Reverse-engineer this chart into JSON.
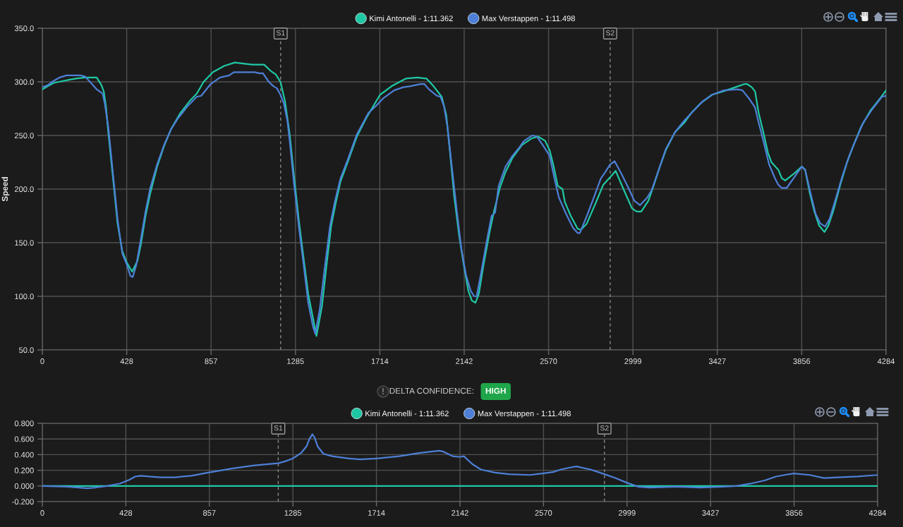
{
  "chart_data": [
    {
      "type": "line",
      "ylabel": "Speed",
      "legend": "top",
      "grid": true,
      "xlim": [
        0,
        4284
      ],
      "xticks": [
        0,
        {
          "value": 428.4,
          "label": "428"
        },
        {
          "value": 856.8,
          "label": "857"
        },
        {
          "value": 1285.2,
          "label": "1285"
        },
        {
          "value": 1713.6,
          "label": "1714"
        },
        2142,
        {
          "value": 2570.4,
          "label": "2570"
        },
        {
          "value": 2998.8,
          "label": "2999"
        },
        {
          "value": 3427.2,
          "label": "3427"
        },
        {
          "value": 3855.6,
          "label": "3856"
        },
        4284
      ],
      "ylim": [
        50,
        350
      ],
      "yticks": [
        {
          "value": 50,
          "label": "50.0"
        },
        {
          "value": 100,
          "label": "100.0"
        },
        {
          "value": 150,
          "label": "150.0"
        },
        {
          "value": 200,
          "label": "200.0"
        },
        {
          "value": 250,
          "label": "250.0"
        },
        {
          "value": 300,
          "label": "300.0"
        },
        {
          "value": 350,
          "label": "350.0"
        }
      ],
      "ref_lines": [
        {
          "axis": "x",
          "value": 1210,
          "label": "S1",
          "color": "#8a8a8a",
          "line_style": "dashed"
        },
        {
          "axis": "x",
          "value": 2883,
          "label": "S2",
          "color": "#8a8a8a",
          "line_style": "dashed"
        }
      ],
      "series": [
        {
          "name": "Kimi Antonelli - 1:11.362",
          "color": "#1fc8a4",
          "x": [
            0,
            28,
            58,
            111,
            140,
            170,
            217,
            276,
            300,
            312,
            323,
            335,
            359,
            382,
            406,
            430,
            456,
            483,
            500,
            524,
            548,
            583,
            618,
            654,
            701,
            748,
            784,
            819,
            866,
            925,
            978,
            1020,
            1067,
            1126,
            1161,
            1185,
            1209,
            1232,
            1256,
            1279,
            1303,
            1327,
            1350,
            1374,
            1392,
            1420,
            1443,
            1467,
            1491,
            1514,
            1550,
            1597,
            1644,
            1715,
            1774,
            1845,
            1904,
            1951,
            1986,
            2028,
            2051,
            2069,
            2092,
            2116,
            2140,
            2163,
            2181,
            2199,
            2216,
            2240,
            2270,
            2293,
            2323,
            2352,
            2387,
            2435,
            2482,
            2517,
            2553,
            2576,
            2594,
            2617,
            2641,
            2653,
            2683,
            2718,
            2735,
            2765,
            2800,
            2812,
            2848,
            2883,
            2911,
            2953,
            2994,
            3018,
            3041,
            3077,
            3100,
            3130,
            3165,
            3212,
            3260,
            3295,
            3342,
            3401,
            3472,
            3519,
            3566,
            3578,
            3602,
            3619,
            3637,
            3661,
            3684,
            3702,
            3737,
            3755,
            3772,
            3814,
            3856,
            3873,
            3897,
            3920,
            3944,
            3971,
            3991,
            4015,
            4050,
            4086,
            4121,
            4157,
            4204,
            4251,
            4284
          ],
          "values": [
            293,
            296,
            299,
            301,
            302,
            303,
            304,
            304,
            297,
            291,
            277,
            253,
            210,
            168,
            142,
            131,
            123,
            133,
            148,
            175,
            196,
            221,
            240,
            256,
            271,
            282,
            289,
            300,
            309,
            315,
            318,
            317,
            316,
            316,
            310,
            307,
            300,
            282,
            251,
            210,
            170,
            135,
            102,
            80,
            63,
            91,
            129,
            166,
            188,
            207,
            225,
            249,
            266,
            288,
            296,
            303,
            304,
            303,
            296,
            286,
            269,
            236,
            192,
            157,
            129,
            105,
            96,
            94,
            102,
            129,
            159,
            179,
            201,
            216,
            229,
            241,
            247,
            249,
            245,
            236,
            223,
            203,
            200,
            188,
            175,
            163,
            162,
            168,
            183,
            188,
            204,
            211,
            217,
            199,
            182,
            179,
            179,
            189,
            201,
            218,
            236,
            253,
            262,
            271,
            280,
            288,
            292,
            295,
            298,
            298,
            295,
            291,
            271,
            253,
            234,
            225,
            218,
            210,
            208,
            214,
            221,
            218,
            196,
            179,
            166,
            160,
            166,
            179,
            203,
            225,
            242,
            258,
            273,
            284,
            292
          ]
        },
        {
          "name": "Max Verstappen - 1:11.498",
          "color": "#4d7fd6",
          "x": [
            0,
            28,
            58,
            87,
            123,
            194,
            217,
            247,
            276,
            306,
            317,
            335,
            359,
            382,
            406,
            430,
            447,
            459,
            477,
            500,
            524,
            548,
            583,
            618,
            654,
            689,
            736,
            784,
            807,
            855,
            902,
            949,
            972,
            1079,
            1102,
            1120,
            1150,
            1173,
            1191,
            1209,
            1226,
            1244,
            1256,
            1279,
            1303,
            1327,
            1350,
            1374,
            1386,
            1408,
            1432,
            1461,
            1485,
            1514,
            1550,
            1597,
            1656,
            1691,
            1733,
            1786,
            1833,
            1869,
            1921,
            1939,
            1963,
            2004,
            2022,
            2040,
            2057,
            2081,
            2105,
            2128,
            2151,
            2175,
            2193,
            2205,
            2228,
            2258,
            2281,
            2299,
            2317,
            2352,
            2387,
            2423,
            2446,
            2488,
            2511,
            2541,
            2576,
            2600,
            2623,
            2659,
            2694,
            2718,
            2729,
            2765,
            2800,
            2836,
            2859,
            2883,
            2906,
            2941,
            2976,
            3006,
            3035,
            3071,
            3094,
            3130,
            3165,
            3212,
            3260,
            3307,
            3354,
            3401,
            3460,
            3531,
            3555,
            3590,
            3619,
            3637,
            3661,
            3690,
            3720,
            3737,
            3755,
            3779,
            3814,
            3856,
            3873,
            3897,
            3926,
            3950,
            3974,
            3997,
            4027,
            4062,
            4097,
            4133,
            4168,
            4216,
            4263,
            4284
          ],
          "values": [
            295,
            297,
            301,
            304,
            306,
            306,
            305,
            299,
            293,
            289,
            280,
            258,
            214,
            172,
            140,
            129,
            119,
            118,
            129,
            153,
            179,
            201,
            223,
            241,
            256,
            266,
            277,
            286,
            287,
            298,
            304,
            306,
            309,
            309,
            308,
            308,
            300,
            296,
            294,
            288,
            280,
            264,
            245,
            203,
            164,
            129,
            94,
            72,
            65,
            87,
            124,
            166,
            188,
            210,
            227,
            251,
            271,
            277,
            285,
            292,
            295,
            296,
            298,
            298,
            293,
            287,
            286,
            277,
            258,
            218,
            179,
            144,
            120,
            105,
            100,
            100,
            122,
            153,
            175,
            178,
            203,
            221,
            231,
            239,
            245,
            250,
            249,
            241,
            231,
            210,
            192,
            177,
            164,
            159,
            159,
            175,
            192,
            210,
            216,
            223,
            226,
            214,
            201,
            189,
            185,
            192,
            199,
            218,
            237,
            253,
            264,
            273,
            282,
            288,
            292,
            293,
            292,
            284,
            276,
            262,
            245,
            223,
            210,
            204,
            201,
            201,
            210,
            221,
            218,
            199,
            177,
            168,
            165,
            172,
            190,
            212,
            231,
            247,
            262,
            275,
            286,
            287
          ]
        }
      ]
    },
    {
      "type": "line",
      "legend": "top",
      "grid": true,
      "annotations": [
        "DELTA CONFIDENCE:",
        "HIGH"
      ],
      "xlim": [
        0,
        4284
      ],
      "xticks": [
        0,
        {
          "value": 428.4,
          "label": "428"
        },
        {
          "value": 856.8,
          "label": "857"
        },
        {
          "value": 1285.2,
          "label": "1285"
        },
        {
          "value": 1713.6,
          "label": "1714"
        },
        2142,
        {
          "value": 2570.4,
          "label": "2570"
        },
        {
          "value": 2998.8,
          "label": "2999"
        },
        {
          "value": 3427.2,
          "label": "3427"
        },
        {
          "value": 3855.6,
          "label": "3856"
        },
        4284
      ],
      "ylim": [
        -0.2,
        0.8
      ],
      "yticks": [
        {
          "value": -0.2,
          "label": "-0.200"
        },
        {
          "value": 0,
          "label": "0.000"
        },
        {
          "value": 0.2,
          "label": "0.200"
        },
        {
          "value": 0.4,
          "label": "0.400"
        },
        {
          "value": 0.6,
          "label": "0.600"
        },
        {
          "value": 0.8,
          "label": "0.800"
        }
      ],
      "ref_lines": [
        {
          "axis": "x",
          "value": 1210,
          "label": "S1",
          "color": "#8a8a8a",
          "line_style": "dashed"
        },
        {
          "axis": "x",
          "value": 2883,
          "label": "S2",
          "color": "#8a8a8a",
          "line_style": "dashed"
        }
      ],
      "series": [
        {
          "name": "Kimi Antonelli - 1:11.362",
          "color": "#1fc8a4",
          "x": [
            0,
            4284
          ],
          "values": [
            0,
            0
          ]
        },
        {
          "name": "Max Verstappen - 1:11.498",
          "color": "#4d7fd6",
          "x": [
            0,
            130,
            231,
            274,
            332,
            397,
            418,
            447,
            476,
            505,
            548,
            606,
            678,
            764,
            851,
            966,
            1082,
            1168,
            1209,
            1240,
            1284,
            1327,
            1356,
            1370,
            1385,
            1396,
            1413,
            1442,
            1486,
            1572,
            1630,
            1716,
            1832,
            1933,
            2034,
            2055,
            2104,
            2141,
            2162,
            2205,
            2249,
            2321,
            2393,
            2501,
            2566,
            2624,
            2660,
            2696,
            2739,
            2811,
            2883,
            2941,
            2999,
            3056,
            3114,
            3258,
            3374,
            3489,
            3561,
            3633,
            3705,
            3763,
            3806,
            3855,
            3936,
            4009,
            4081,
            4181,
            4284
          ],
          "values": [
            0,
            -0.01,
            -0.03,
            -0.02,
            0.0,
            0.03,
            0.05,
            0.08,
            0.12,
            0.13,
            0.12,
            0.11,
            0.11,
            0.13,
            0.17,
            0.22,
            0.26,
            0.28,
            0.29,
            0.31,
            0.35,
            0.42,
            0.51,
            0.6,
            0.66,
            0.62,
            0.5,
            0.41,
            0.38,
            0.35,
            0.34,
            0.35,
            0.38,
            0.42,
            0.45,
            0.44,
            0.38,
            0.37,
            0.38,
            0.28,
            0.21,
            0.17,
            0.15,
            0.14,
            0.16,
            0.18,
            0.21,
            0.23,
            0.25,
            0.21,
            0.15,
            0.1,
            0.04,
            -0.01,
            -0.02,
            -0.01,
            -0.02,
            -0.01,
            0.0,
            0.03,
            0.07,
            0.12,
            0.14,
            0.16,
            0.14,
            0.1,
            0.11,
            0.12,
            0.14
          ]
        }
      ]
    }
  ]
}
